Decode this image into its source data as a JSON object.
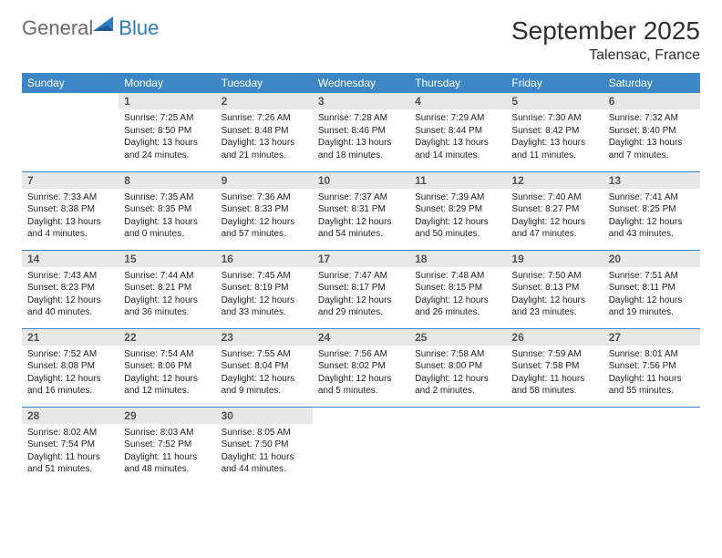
{
  "brand": {
    "text1": "General",
    "text2": "Blue",
    "color_gray": "#6a6a6a",
    "color_blue": "#2f7bbf"
  },
  "title": "September 2025",
  "location": "Talensac, France",
  "header_bg": "#3d87c7",
  "header_fg": "#ffffff",
  "daynum_bg": "#e8e8e8",
  "divider_color": "#3d87c7",
  "day_headers": [
    "Sunday",
    "Monday",
    "Tuesday",
    "Wednesday",
    "Thursday",
    "Friday",
    "Saturday"
  ],
  "weeks": [
    [
      null,
      {
        "n": "1",
        "sr": "7:25 AM",
        "ss": "8:50 PM",
        "dh": "13",
        "dm": "24"
      },
      {
        "n": "2",
        "sr": "7:26 AM",
        "ss": "8:48 PM",
        "dh": "13",
        "dm": "21"
      },
      {
        "n": "3",
        "sr": "7:28 AM",
        "ss": "8:46 PM",
        "dh": "13",
        "dm": "18"
      },
      {
        "n": "4",
        "sr": "7:29 AM",
        "ss": "8:44 PM",
        "dh": "13",
        "dm": "14"
      },
      {
        "n": "5",
        "sr": "7:30 AM",
        "ss": "8:42 PM",
        "dh": "13",
        "dm": "11"
      },
      {
        "n": "6",
        "sr": "7:32 AM",
        "ss": "8:40 PM",
        "dh": "13",
        "dm": "7"
      }
    ],
    [
      {
        "n": "7",
        "sr": "7:33 AM",
        "ss": "8:38 PM",
        "dh": "13",
        "dm": "4"
      },
      {
        "n": "8",
        "sr": "7:35 AM",
        "ss": "8:35 PM",
        "dh": "13",
        "dm": "0"
      },
      {
        "n": "9",
        "sr": "7:36 AM",
        "ss": "8:33 PM",
        "dh": "12",
        "dm": "57"
      },
      {
        "n": "10",
        "sr": "7:37 AM",
        "ss": "8:31 PM",
        "dh": "12",
        "dm": "54"
      },
      {
        "n": "11",
        "sr": "7:39 AM",
        "ss": "8:29 PM",
        "dh": "12",
        "dm": "50"
      },
      {
        "n": "12",
        "sr": "7:40 AM",
        "ss": "8:27 PM",
        "dh": "12",
        "dm": "47"
      },
      {
        "n": "13",
        "sr": "7:41 AM",
        "ss": "8:25 PM",
        "dh": "12",
        "dm": "43"
      }
    ],
    [
      {
        "n": "14",
        "sr": "7:43 AM",
        "ss": "8:23 PM",
        "dh": "12",
        "dm": "40"
      },
      {
        "n": "15",
        "sr": "7:44 AM",
        "ss": "8:21 PM",
        "dh": "12",
        "dm": "36"
      },
      {
        "n": "16",
        "sr": "7:45 AM",
        "ss": "8:19 PM",
        "dh": "12",
        "dm": "33"
      },
      {
        "n": "17",
        "sr": "7:47 AM",
        "ss": "8:17 PM",
        "dh": "12",
        "dm": "29"
      },
      {
        "n": "18",
        "sr": "7:48 AM",
        "ss": "8:15 PM",
        "dh": "12",
        "dm": "26"
      },
      {
        "n": "19",
        "sr": "7:50 AM",
        "ss": "8:13 PM",
        "dh": "12",
        "dm": "23"
      },
      {
        "n": "20",
        "sr": "7:51 AM",
        "ss": "8:11 PM",
        "dh": "12",
        "dm": "19"
      }
    ],
    [
      {
        "n": "21",
        "sr": "7:52 AM",
        "ss": "8:08 PM",
        "dh": "12",
        "dm": "16"
      },
      {
        "n": "22",
        "sr": "7:54 AM",
        "ss": "8:06 PM",
        "dh": "12",
        "dm": "12"
      },
      {
        "n": "23",
        "sr": "7:55 AM",
        "ss": "8:04 PM",
        "dh": "12",
        "dm": "9"
      },
      {
        "n": "24",
        "sr": "7:56 AM",
        "ss": "8:02 PM",
        "dh": "12",
        "dm": "5"
      },
      {
        "n": "25",
        "sr": "7:58 AM",
        "ss": "8:00 PM",
        "dh": "12",
        "dm": "2"
      },
      {
        "n": "26",
        "sr": "7:59 AM",
        "ss": "7:58 PM",
        "dh": "11",
        "dm": "58"
      },
      {
        "n": "27",
        "sr": "8:01 AM",
        "ss": "7:56 PM",
        "dh": "11",
        "dm": "55"
      }
    ],
    [
      {
        "n": "28",
        "sr": "8:02 AM",
        "ss": "7:54 PM",
        "dh": "11",
        "dm": "51"
      },
      {
        "n": "29",
        "sr": "8:03 AM",
        "ss": "7:52 PM",
        "dh": "11",
        "dm": "48"
      },
      {
        "n": "30",
        "sr": "8:05 AM",
        "ss": "7:50 PM",
        "dh": "11",
        "dm": "44"
      },
      null,
      null,
      null,
      null
    ]
  ],
  "labels": {
    "sunrise_prefix": "Sunrise: ",
    "sunset_prefix": "Sunset: ",
    "daylight_prefix": "Daylight: ",
    "hours_word": " hours",
    "and_word": "and ",
    "minutes_word": " minutes."
  }
}
